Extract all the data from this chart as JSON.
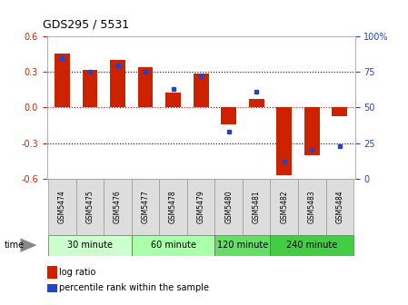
{
  "title": "GDS295 / 5531",
  "samples": [
    "GSM5474",
    "GSM5475",
    "GSM5476",
    "GSM5477",
    "GSM5478",
    "GSM5479",
    "GSM5480",
    "GSM5481",
    "GSM5482",
    "GSM5483",
    "GSM5484"
  ],
  "log_ratio": [
    0.46,
    0.32,
    0.4,
    0.34,
    0.13,
    0.29,
    -0.14,
    0.07,
    -0.57,
    -0.4,
    -0.07
  ],
  "percentile": [
    85,
    75,
    80,
    75,
    63,
    72,
    33,
    61,
    12,
    20,
    23
  ],
  "bar_color": "#cc2200",
  "dot_color": "#2244cc",
  "ylim": [
    -0.6,
    0.6
  ],
  "yticks_left": [
    -0.6,
    -0.3,
    0.0,
    0.3,
    0.6
  ],
  "yticks_right": [
    0,
    25,
    50,
    75,
    100
  ],
  "yticklabels_right": [
    "0",
    "25",
    "50",
    "75",
    "100%"
  ],
  "dotted_lines": [
    -0.3,
    0.0,
    0.3
  ],
  "groups": [
    {
      "label": "30 minute",
      "start": 0,
      "end": 3,
      "color": "#ccffcc"
    },
    {
      "label": "60 minute",
      "start": 3,
      "end": 6,
      "color": "#aaffaa"
    },
    {
      "label": "120 minute",
      "start": 6,
      "end": 8,
      "color": "#66dd66"
    },
    {
      "label": "240 minute",
      "start": 8,
      "end": 11,
      "color": "#44cc44"
    }
  ],
  "time_label": "time",
  "legend_log_ratio": "log ratio",
  "legend_percentile": "percentile rank within the sample",
  "bar_width": 0.55
}
